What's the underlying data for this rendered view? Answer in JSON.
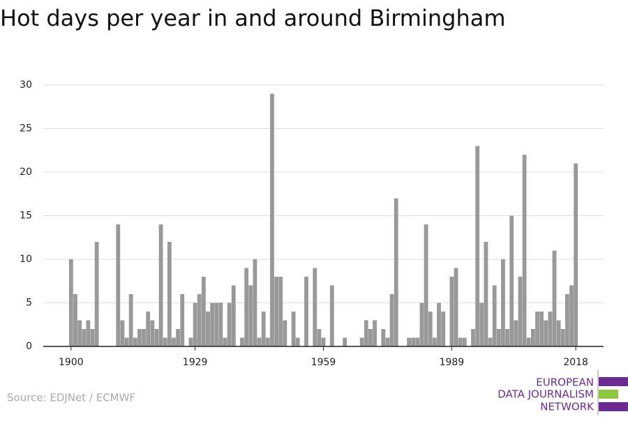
{
  "chart_data": {
    "type": "bar",
    "title": "Hot days per year in and around Birmingham",
    "source": "Source: EDJNet / ECMWF",
    "logo": [
      "EUROPEAN",
      "DATA JOURNALISM",
      "NETWORK"
    ],
    "color": "#999999",
    "x": [
      1900,
      1901,
      1902,
      1903,
      1904,
      1905,
      1906,
      1907,
      1908,
      1909,
      1910,
      1911,
      1912,
      1913,
      1914,
      1915,
      1916,
      1917,
      1918,
      1919,
      1920,
      1921,
      1922,
      1923,
      1924,
      1925,
      1926,
      1927,
      1928,
      1929,
      1930,
      1931,
      1932,
      1933,
      1934,
      1935,
      1936,
      1937,
      1938,
      1939,
      1940,
      1941,
      1942,
      1943,
      1944,
      1945,
      1946,
      1947,
      1948,
      1949,
      1950,
      1951,
      1952,
      1953,
      1954,
      1955,
      1956,
      1957,
      1958,
      1959,
      1960,
      1961,
      1962,
      1963,
      1964,
      1965,
      1966,
      1967,
      1968,
      1969,
      1970,
      1971,
      1972,
      1973,
      1974,
      1975,
      1976,
      1977,
      1978,
      1979,
      1980,
      1981,
      1982,
      1983,
      1984,
      1985,
      1986,
      1987,
      1988,
      1989,
      1990,
      1991,
      1992,
      1993,
      1994,
      1995,
      1996,
      1997,
      1998,
      1999,
      2000,
      2001,
      2002,
      2003,
      2004,
      2005,
      2006,
      2007,
      2008,
      2009,
      2010,
      2011,
      2012,
      2013,
      2014,
      2015,
      2016,
      2017,
      2018
    ],
    "values": [
      10,
      6,
      3,
      2,
      3,
      2,
      12,
      0,
      0,
      0,
      0,
      14,
      3,
      1,
      6,
      1,
      2,
      2,
      4,
      3,
      2,
      14,
      1,
      12,
      1,
      2,
      6,
      0,
      1,
      5,
      6,
      8,
      4,
      5,
      5,
      5,
      1,
      5,
      7,
      0,
      1,
      9,
      7,
      10,
      1,
      4,
      1,
      29,
      8,
      8,
      3,
      0,
      4,
      1,
      0,
      8,
      0,
      9,
      2,
      1,
      0,
      7,
      0,
      0,
      1,
      0,
      0,
      0,
      1,
      3,
      2,
      3,
      0,
      2,
      1,
      6,
      17,
      0,
      0,
      1,
      1,
      1,
      5,
      14,
      4,
      1,
      5,
      4,
      0,
      8,
      9,
      1,
      1,
      0,
      2,
      23,
      5,
      12,
      1,
      7,
      2,
      10,
      2,
      15,
      3,
      8,
      22,
      1,
      2,
      4,
      4,
      3,
      4,
      11,
      3,
      2,
      6,
      7,
      21
    ],
    "xlim": [
      1893.5,
      2024.5
    ],
    "xticks": [
      1900,
      1929,
      1959,
      1989,
      2018
    ],
    "ylim": [
      0,
      30
    ],
    "yticks": [
      0,
      5,
      10,
      15,
      20,
      25,
      30
    ],
    "grid": true
  }
}
